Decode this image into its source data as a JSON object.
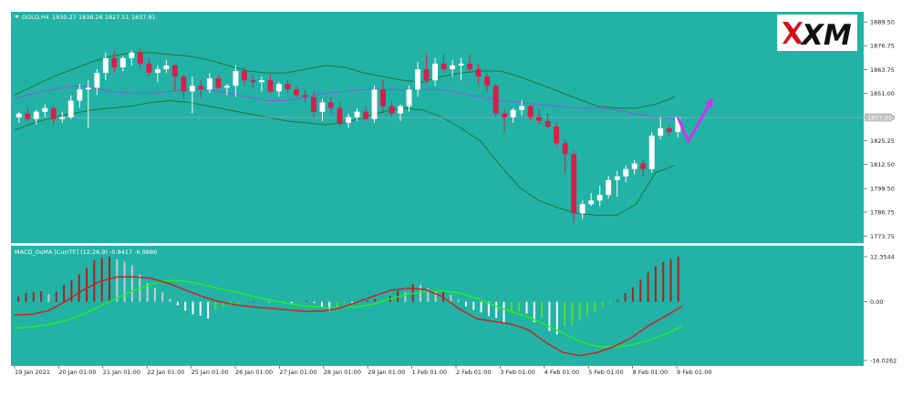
{
  "chart_header": {
    "symbol_label": "GOLD,H4",
    "ohlc_label": "1830.27 1838.26 1827.51 1837.91",
    "macd_label": "MACD_OsMA [CurrTF] (12,26,9) -0.8417 -6.9886"
  },
  "logo_text": "XM",
  "colors": {
    "background": "#22b2a6",
    "frame": "#ffffff",
    "bull": "#ffffff",
    "bear": "#d4204a",
    "bands": "#1a7a36",
    "ma": "#8855dd",
    "arrow": "#cc33ee",
    "macd_line": "#cc2222",
    "signal_line": "#22ee22",
    "hist_up_strong": "#aa2222",
    "hist_up_weak": "#cccccc",
    "hist_down_strong": "#ffffff",
    "hist_down_weak": "#55dd33"
  },
  "current_price_label": "1837.91",
  "chart_data": [
    {
      "type": "candlestick",
      "title": "GOLD,H4",
      "ylim": [
        1770,
        1895
      ],
      "yticks": [
        "1889.50",
        "1876.75",
        "1863.75",
        "1851.00",
        "1838.00",
        "1825.25",
        "1812.50",
        "1799.50",
        "1786.75",
        "1773.75"
      ],
      "xticks": [
        "19 Jan 2021",
        "20 Jan 01:00",
        "21 Jan 01:00",
        "22 Jan 01:00",
        "25 Jan 01:00",
        "26 Jan 01:00",
        "27 Jan 01:00",
        "28 Jan 01:00",
        "29 Jan 01:00",
        "1 Feb 01:00",
        "2 Feb 01:00",
        "3 Feb 01:00",
        "4 Feb 01:00",
        "5 Feb 01:00",
        "8 Feb 01:00",
        "9 Feb 01:00"
      ],
      "ohlc": [
        [
          1838,
          1841,
          1835,
          1840
        ],
        [
          1840,
          1843,
          1836,
          1837
        ],
        [
          1837,
          1842,
          1834,
          1841
        ],
        [
          1841,
          1845,
          1838,
          1843
        ],
        [
          1843,
          1844,
          1834,
          1837
        ],
        [
          1837,
          1841,
          1835,
          1838
        ],
        [
          1838,
          1850,
          1837,
          1847
        ],
        [
          1847,
          1856,
          1843,
          1853
        ],
        [
          1853,
          1858,
          1832,
          1854
        ],
        [
          1854,
          1864,
          1850,
          1862
        ],
        [
          1862,
          1873,
          1858,
          1870
        ],
        [
          1870,
          1874,
          1862,
          1865
        ],
        [
          1865,
          1871,
          1863,
          1870
        ],
        [
          1870,
          1874,
          1866,
          1873
        ],
        [
          1873,
          1875,
          1865,
          1867
        ],
        [
          1867,
          1870,
          1860,
          1862
        ],
        [
          1862,
          1866,
          1857,
          1864
        ],
        [
          1864,
          1869,
          1862,
          1866
        ],
        [
          1866,
          1867,
          1852,
          1860
        ],
        [
          1860,
          1861,
          1848,
          1852
        ],
        [
          1852,
          1860,
          1840,
          1855
        ],
        [
          1855,
          1858,
          1848,
          1853
        ],
        [
          1853,
          1862,
          1851,
          1859
        ],
        [
          1859,
          1861,
          1853,
          1854
        ],
        [
          1854,
          1856,
          1850,
          1855
        ],
        [
          1855,
          1866,
          1849,
          1863
        ],
        [
          1863,
          1865,
          1855,
          1858
        ],
        [
          1858,
          1861,
          1854,
          1857
        ],
        [
          1857,
          1860,
          1852,
          1858
        ],
        [
          1858,
          1861,
          1851,
          1852
        ],
        [
          1852,
          1857,
          1849,
          1856
        ],
        [
          1856,
          1858,
          1851,
          1853
        ],
        [
          1853,
          1855,
          1849,
          1850
        ],
        [
          1850,
          1853,
          1846,
          1849
        ],
        [
          1849,
          1852,
          1838,
          1841
        ],
        [
          1841,
          1848,
          1836,
          1846
        ],
        [
          1846,
          1849,
          1840,
          1843
        ],
        [
          1843,
          1846,
          1833,
          1835
        ],
        [
          1835,
          1840,
          1832,
          1838
        ],
        [
          1838,
          1843,
          1836,
          1841
        ],
        [
          1841,
          1844,
          1836,
          1837
        ],
        [
          1837,
          1855,
          1835,
          1853
        ],
        [
          1853,
          1858,
          1840,
          1844
        ],
        [
          1844,
          1847,
          1838,
          1840
        ],
        [
          1840,
          1845,
          1836,
          1844
        ],
        [
          1844,
          1855,
          1841,
          1853
        ],
        [
          1853,
          1868,
          1849,
          1864
        ],
        [
          1864,
          1872,
          1856,
          1858
        ],
        [
          1858,
          1870,
          1855,
          1867
        ],
        [
          1867,
          1872,
          1862,
          1864
        ],
        [
          1864,
          1869,
          1860,
          1866
        ],
        [
          1866,
          1870,
          1858,
          1867
        ],
        [
          1867,
          1872,
          1862,
          1864
        ],
        [
          1864,
          1867,
          1856,
          1860
        ],
        [
          1860,
          1862,
          1852,
          1855
        ],
        [
          1855,
          1856,
          1838,
          1840
        ],
        [
          1840,
          1842,
          1830,
          1838
        ],
        [
          1838,
          1843,
          1835,
          1842
        ],
        [
          1842,
          1847,
          1839,
          1844
        ],
        [
          1844,
          1845,
          1836,
          1838
        ],
        [
          1838,
          1842,
          1834,
          1836
        ],
        [
          1836,
          1840,
          1832,
          1833
        ],
        [
          1833,
          1835,
          1822,
          1824
        ],
        [
          1824,
          1826,
          1808,
          1818
        ],
        [
          1818,
          1820,
          1781,
          1786
        ],
        [
          1786,
          1793,
          1783,
          1791
        ],
        [
          1791,
          1797,
          1790,
          1793
        ],
        [
          1793,
          1801,
          1790,
          1796
        ],
        [
          1796,
          1806,
          1794,
          1804
        ],
        [
          1804,
          1809,
          1795,
          1806
        ],
        [
          1806,
          1812,
          1803,
          1810
        ],
        [
          1810,
          1815,
          1807,
          1813
        ],
        [
          1813,
          1815,
          1806,
          1810
        ],
        [
          1810,
          1830,
          1808,
          1828
        ],
        [
          1828,
          1838,
          1826,
          1832
        ],
        [
          1832,
          1834,
          1828,
          1830
        ],
        [
          1830,
          1838,
          1827,
          1838
        ]
      ],
      "upper_band": [
        1850,
        1855,
        1860,
        1864,
        1868,
        1871,
        1873,
        1873,
        1872,
        1871,
        1869,
        1866,
        1863,
        1862,
        1862,
        1864,
        1866,
        1865,
        1862,
        1860,
        1858,
        1857,
        1860,
        1862,
        1863,
        1863,
        1860,
        1856,
        1852,
        1848,
        1844,
        1843,
        1843,
        1845,
        1849
      ],
      "lower_band": [
        1831,
        1835,
        1838,
        1840,
        1842,
        1843,
        1844,
        1846,
        1847,
        1846,
        1844,
        1842,
        1840,
        1838,
        1836,
        1835,
        1834,
        1835,
        1838,
        1841,
        1843,
        1842,
        1838,
        1832,
        1825,
        1812,
        1800,
        1793,
        1789,
        1786,
        1785,
        1785,
        1791,
        1808,
        1812
      ],
      "moving_average": [
        1848,
        1851,
        1853,
        1855,
        1854,
        1852,
        1851,
        1851,
        1852,
        1853,
        1853,
        1851,
        1849,
        1847,
        1847,
        1849,
        1851,
        1852,
        1853,
        1853,
        1853,
        1853,
        1853,
        1851,
        1849,
        1847,
        1846,
        1845,
        1844,
        1843,
        1843,
        1842,
        1840,
        1838,
        1837
      ],
      "current_price": 1837.91,
      "projection_arrow": [
        [
          1838,
          0
        ],
        [
          1825,
          1.2
        ],
        [
          1848,
          4
        ]
      ]
    },
    {
      "type": "bar",
      "title": "MACD_OsMA [CurrTF] (12,26,9) -0.8417 -6.9886",
      "ylim": [
        -16.0262,
        12.3544
      ],
      "yticks": [
        "12.3544",
        "0.00",
        "-16.0262"
      ],
      "histogram": [
        1.5,
        2.4,
        2.6,
        2.9,
        2.1,
        2.8,
        4.6,
        5.9,
        7.5,
        9.3,
        11.4,
        12.0,
        12.3,
        11.6,
        11.0,
        10.0,
        7.5,
        5.1,
        3.8,
        2.6,
        0.8,
        -1.0,
        -2.4,
        -3.4,
        -3.8,
        -4.6,
        -2.3,
        -1.5,
        -1.0,
        -0.5,
        -0.2,
        0.2,
        0.0,
        -0.2,
        -0.1,
        -0.2,
        -0.4,
        -0.2,
        0.3,
        -0.3,
        -1.3,
        -2.5,
        -1.9,
        -0.3,
        -0.5,
        0.1,
        0.4,
        0.8,
        0.4,
        1.6,
        3.0,
        2.6,
        4.8,
        4.6,
        3.8,
        3.0,
        3.1,
        2.0,
        0.5,
        -1.2,
        -2.2,
        -2.9,
        -3.9,
        -4.4,
        -5.7,
        -3.1,
        -2.5,
        -3.2,
        -5.6,
        -4.3,
        -8.0,
        -8.9,
        -6.6,
        -6.4,
        -5.2,
        -3.8,
        -2.6,
        -1.5,
        -0.4,
        0.5,
        2.4,
        4.0,
        6.0,
        8.0,
        9.8,
        10.9,
        11.7,
        12.3
      ],
      "macd_line": [
        -3.6,
        -3.4,
        -2.4,
        0.2,
        3.2,
        5.6,
        6.8,
        6.8,
        6.4,
        5.0,
        3.2,
        1.4,
        0.0,
        -0.9,
        -1.4,
        -1.8,
        -2.2,
        -2.6,
        -2.5,
        -1.7,
        -0.1,
        1.6,
        3.2,
        3.7,
        3.4,
        1.4,
        -2.0,
        -4.6,
        -5.4,
        -6.1,
        -7.6,
        -11.0,
        -13.8,
        -14.7,
        -13.9,
        -12.3,
        -9.9,
        -6.6,
        -4.0,
        -1.2
      ],
      "signal_line": [
        -7.2,
        -6.9,
        -6.2,
        -5.1,
        -3.4,
        -1.2,
        1.1,
        3.2,
        4.8,
        5.9,
        5.6,
        4.7,
        3.6,
        2.6,
        1.5,
        0.4,
        -0.5,
        -1.1,
        -1.5,
        -1.6,
        -1.4,
        -0.6,
        0.9,
        2.1,
        2.8,
        3.0,
        2.4,
        1.0,
        -1.0,
        -2.6,
        -4.2,
        -6.2,
        -8.4,
        -10.8,
        -12.2,
        -12.4,
        -11.8,
        -10.6,
        -8.9,
        -6.6
      ]
    }
  ]
}
